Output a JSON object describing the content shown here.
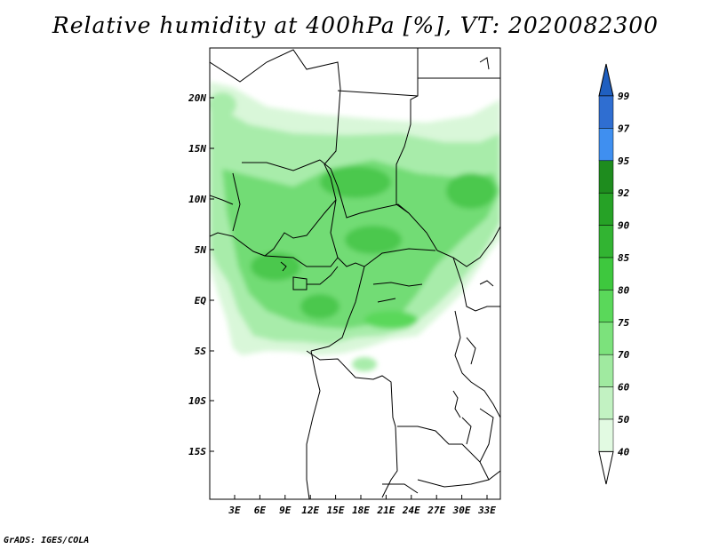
{
  "title": "Relative humidity at 400hPa [%], VT: 2020082300",
  "credit": "GrADS: IGES/COLA",
  "map": {
    "lat_labels": [
      "20N",
      "15N",
      "10N",
      "5N",
      "EQ",
      "5S",
      "10S",
      "15S"
    ],
    "lon_labels": [
      "3E",
      "6E",
      "9E",
      "12E",
      "15E",
      "18E",
      "21E",
      "24E",
      "27E",
      "30E",
      "33E"
    ]
  },
  "colorbar": {
    "levels": [
      "99",
      "97",
      "95",
      "92",
      "90",
      "85",
      "80",
      "75",
      "70",
      "60",
      "50",
      "40"
    ],
    "colors": [
      "#2f6ed1",
      "#3f8ff0",
      "#1e8c1e",
      "#26a226",
      "#32b432",
      "#3ec83e",
      "#5ad85a",
      "#7ce27c",
      "#a0eaa0",
      "#c2f2c2",
      "#e2fae2",
      "#ffffff"
    ],
    "top_color": "#1f5fc0"
  }
}
